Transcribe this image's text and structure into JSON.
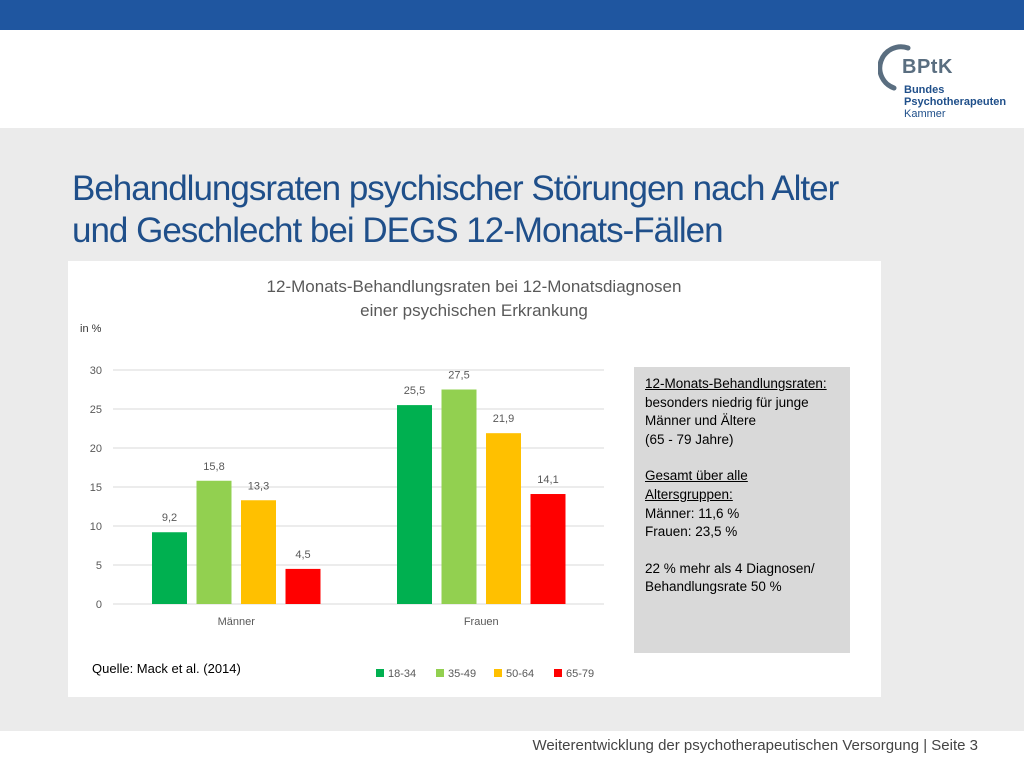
{
  "slide": {
    "title_line1": "Behandlungsraten psychischer Störungen nach Alter",
    "title_line2": "und Geschlecht bei DEGS 12-Monats-Fällen",
    "footer": "Weiterentwicklung der psychotherapeutischen Versorgung | Seite 3"
  },
  "logo": {
    "abbr": "BPtK",
    "line1": "Bundes",
    "line2": "Psychotherapeuten",
    "line3": "Kammer"
  },
  "chart": {
    "unit_label": "in %",
    "source": "Quelle: Mack et al. (2014)"
  },
  "chart_data": {
    "type": "bar",
    "title_line1": "12-Monats-Behandlungsraten bei 12-Monatsdiagnosen",
    "title_line2": "einer psychischen Erkrankung",
    "categories": [
      "Männer",
      "Frauen"
    ],
    "series": [
      {
        "name": "18-34",
        "color": "#00b050",
        "values": [
          9.2,
          25.5
        ],
        "labels": [
          "9,2",
          "25,5"
        ]
      },
      {
        "name": "35-49",
        "color": "#92d050",
        "values": [
          15.8,
          27.5
        ],
        "labels": [
          "15,8",
          "27,5"
        ]
      },
      {
        "name": "50-64",
        "color": "#ffc000",
        "values": [
          13.3,
          21.9
        ],
        "labels": [
          "13,3",
          "21,9"
        ]
      },
      {
        "name": "65-79",
        "color": "#ff0000",
        "values": [
          4.5,
          14.1
        ],
        "labels": [
          "4,5",
          "14,1"
        ]
      }
    ],
    "ylim": [
      0,
      30
    ],
    "yticks": [
      0,
      5,
      10,
      15,
      20,
      25,
      30
    ],
    "grid": true,
    "legend": "bottom"
  },
  "infobox": {
    "heading": "12-Monats-Behandlungsraten:",
    "text1": "besonders niedrig für junge",
    "text2": "Männer und Ältere",
    "text3": "(65 - 79 Jahre)",
    "heading2a": "Gesamt über alle",
    "heading2b": "Altersgruppen:",
    "men": "Männer: 11,6 %",
    "women": "Frauen: 23,5 %",
    "note1": "22 % mehr als 4 Diagnosen/",
    "note2": "Behandlungsrate 50 %"
  }
}
